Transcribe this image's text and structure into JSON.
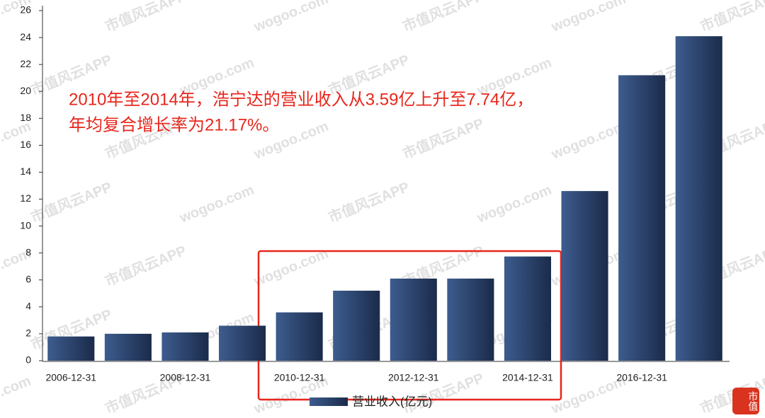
{
  "chart_data": {
    "type": "bar",
    "categories": [
      "2006-12-31",
      null,
      "2008-12-31",
      null,
      "2010-12-31",
      null,
      "2012-12-31",
      null,
      "2014-12-31",
      null,
      "2016-12-31",
      null
    ],
    "series": [
      {
        "name": "营业收入(亿元)",
        "color": "#2b4470",
        "values": [
          1.8,
          2.0,
          2.1,
          2.6,
          3.59,
          5.2,
          6.1,
          6.1,
          7.74,
          12.6,
          21.2,
          24.1
        ]
      }
    ],
    "ylim": [
      0,
      26
    ],
    "yticks": [
      0,
      2,
      4,
      6,
      8,
      10,
      12,
      14,
      16,
      18,
      20,
      22,
      24,
      26
    ],
    "grid": false,
    "annotations": [
      "2010年至2014年，浩宁达的营业收入从3.59亿上升至7.74亿，",
      "年均复合增长率为21.17%。"
    ],
    "watermark": [
      "wogoo.com",
      "市值风云APP"
    ],
    "logo_text": "市值"
  }
}
